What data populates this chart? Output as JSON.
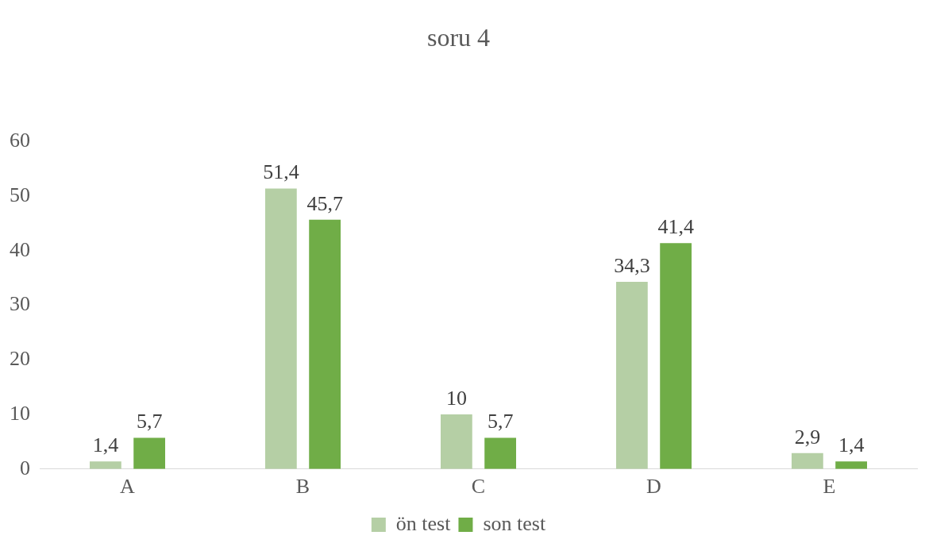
{
  "chart_data": {
    "type": "bar",
    "title": "soru 4",
    "categories": [
      "A",
      "B",
      "C",
      "D",
      "E"
    ],
    "series": [
      {
        "name": "ön test",
        "color": "#b5cfa5",
        "values": [
          1.4,
          51.4,
          10,
          34.3,
          2.9
        ],
        "value_labels": [
          "1,4",
          "51,4",
          "10",
          "34,3",
          "2,9"
        ]
      },
      {
        "name": "son test",
        "color": "#70ad47",
        "values": [
          5.7,
          45.7,
          5.7,
          41.4,
          1.4
        ],
        "value_labels": [
          "5,7",
          "45,7",
          "5,7",
          "41,4",
          "1,4"
        ]
      }
    ],
    "ylim": [
      0,
      60
    ],
    "yticks": [
      0,
      10,
      20,
      30,
      40,
      50,
      60
    ],
    "grid": false,
    "legend": "bottom"
  }
}
